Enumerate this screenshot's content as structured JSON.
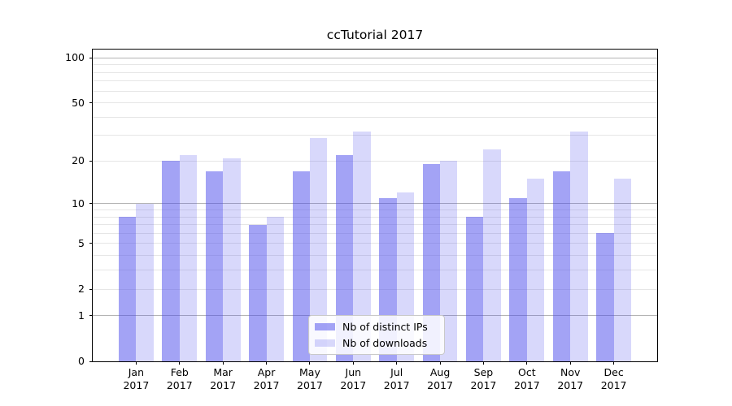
{
  "title": "ccTutorial 2017",
  "legend": {
    "items": [
      {
        "label": "Nb of distinct IPs",
        "color": "rgba(72,72,235,0.5)"
      },
      {
        "label": "Nb of downloads",
        "color": "rgba(72,72,235,0.21)"
      }
    ]
  },
  "chart_data": {
    "type": "bar",
    "title": "ccTutorial 2017",
    "xlabel": "",
    "ylabel": "",
    "y_scale": "pseudo-log: pixel position proportional to log10(value+1)",
    "categories": [
      "Jan 2017",
      "Feb 2017",
      "Mar 2017",
      "Apr 2017",
      "May 2017",
      "Jun 2017",
      "Jul 2017",
      "Aug 2017",
      "Sep 2017",
      "Oct 2017",
      "Nov 2017",
      "Dec 2017"
    ],
    "months": [
      "Jan",
      "Feb",
      "Mar",
      "Apr",
      "May",
      "Jun",
      "Jul",
      "Aug",
      "Sep",
      "Oct",
      "Nov",
      "Dec"
    ],
    "year": "2017",
    "series": [
      {
        "name": "Nb of distinct IPs",
        "color": "rgba(72,72,235,0.5)",
        "values": [
          8,
          20,
          17,
          7,
          17,
          22,
          11,
          19,
          8,
          11,
          17,
          6
        ]
      },
      {
        "name": "Nb of downloads",
        "color": "rgba(72,72,235,0.21)",
        "values": [
          10,
          22,
          21,
          8,
          29,
          32,
          12,
          20,
          24,
          15,
          32,
          15
        ]
      }
    ],
    "y_ticks": [
      0,
      1,
      2,
      5,
      10,
      20,
      50,
      100
    ],
    "y_major_gridlines": [
      1,
      10,
      100
    ],
    "y_minor_gridlines": [
      2,
      3,
      4,
      5,
      6,
      7,
      8,
      9,
      20,
      30,
      40,
      50,
      60,
      70,
      80,
      90
    ],
    "ylim": [
      0,
      114
    ],
    "grid": true,
    "legend_position": "lower center, inside plot",
    "colors": {
      "bar_distinct_ips": "rgba(72,72,235,0.5)",
      "bar_downloads": "rgba(72,72,235,0.21)",
      "major_grid": "#b4b4b4",
      "minor_grid": "#e6e6e6",
      "spine": "#000000",
      "background": "#ffffff"
    }
  }
}
